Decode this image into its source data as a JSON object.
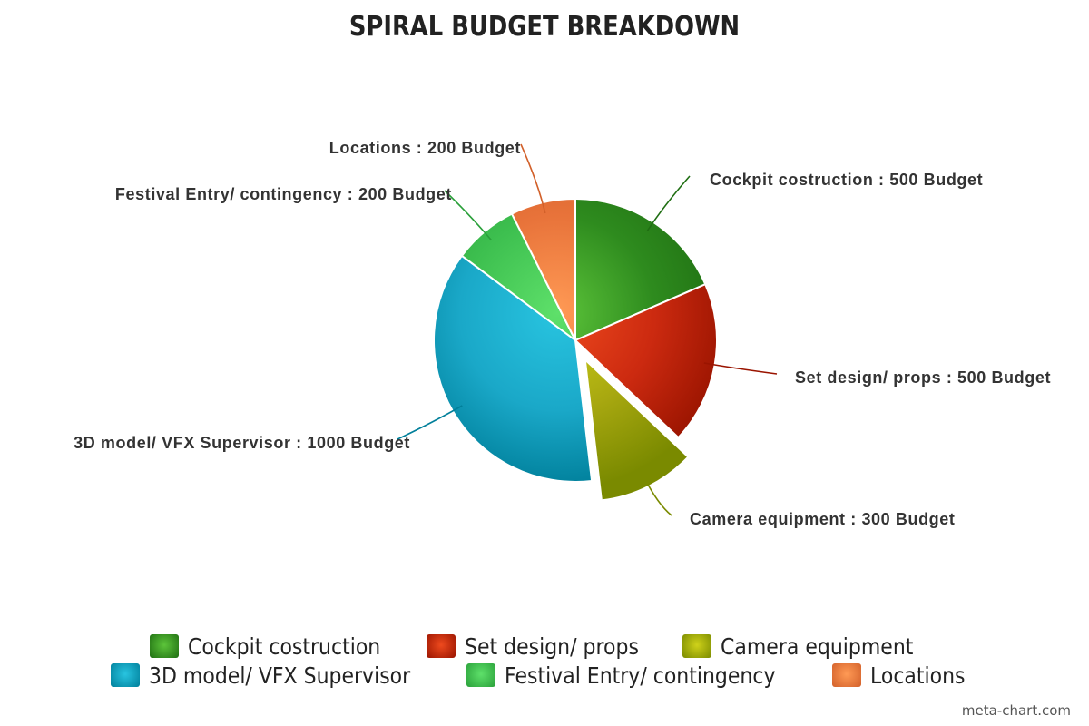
{
  "chart_data": {
    "type": "pie",
    "title": "SPIRAL BUDGET BREAKDOWN",
    "label_suffix": "Budget",
    "slices": [
      {
        "name": "Cockpit costruction",
        "value": 500,
        "color": "#2e8b1e",
        "light": "#5cc43a",
        "dark": "#1f6e12"
      },
      {
        "name": "Set design/ props",
        "value": 500,
        "color": "#cc2a10",
        "light": "#ee4a1e",
        "dark": "#9a1400"
      },
      {
        "name": "Camera equipment",
        "value": 300,
        "color": "#a8a810",
        "light": "#cfd21a",
        "dark": "#7a8a00",
        "exploded": true
      },
      {
        "name": "3D model/ VFX Supervisor",
        "value": 1000,
        "color": "#1aa8c8",
        "light": "#28c4e0",
        "dark": "#007f9a"
      },
      {
        "name": "Festival Entry/ contingency",
        "value": 200,
        "color": "#3dbf4f",
        "light": "#5ee06a",
        "dark": "#2aa03a"
      },
      {
        "name": "Locations",
        "value": 200,
        "color": "#e8733a",
        "light": "#ff9a55",
        "dark": "#d2602a"
      }
    ],
    "legend": {
      "position": "bottom"
    }
  },
  "watermark": "meta-chart.com"
}
